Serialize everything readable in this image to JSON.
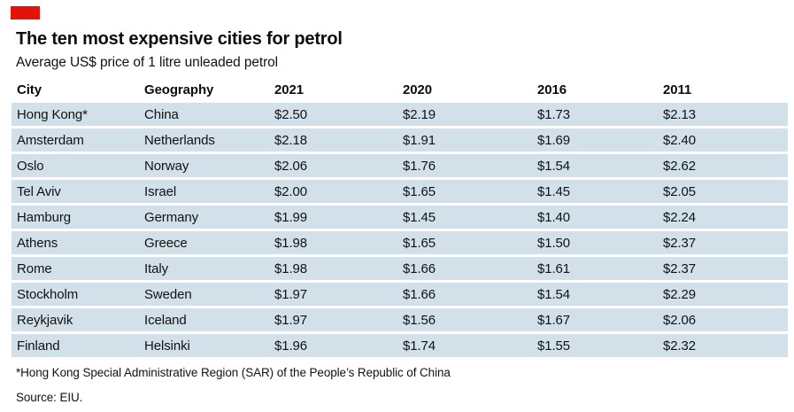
{
  "theme": {
    "logo_color": "#e3120b",
    "row_stripe_color": "#d2e0e9",
    "text_color": "#121212"
  },
  "header": {
    "title": "The ten most expensive cities for petrol",
    "subtitle": "Average US$ price of 1 litre unleaded petrol"
  },
  "table": {
    "columns": [
      "City",
      "Geography",
      "2021",
      "2020",
      "2016",
      "2011"
    ],
    "rows": [
      [
        "Hong Kong*",
        "China",
        "$2.50",
        "$2.19",
        "$1.73",
        "$2.13"
      ],
      [
        "Amsterdam",
        "Netherlands",
        "$2.18",
        "$1.91",
        "$1.69",
        "$2.40"
      ],
      [
        "Oslo",
        "Norway",
        "$2.06",
        "$1.76",
        "$1.54",
        "$2.62"
      ],
      [
        "Tel Aviv",
        "Israel",
        "$2.00",
        "$1.65",
        "$1.45",
        "$2.05"
      ],
      [
        "Hamburg",
        "Germany",
        "$1.99",
        "$1.45",
        "$1.40",
        "$2.24"
      ],
      [
        "Athens",
        "Greece",
        "$1.98",
        "$1.65",
        "$1.50",
        "$2.37"
      ],
      [
        "Rome",
        "Italy",
        "$1.98",
        "$1.66",
        "$1.61",
        "$2.37"
      ],
      [
        "Stockholm",
        "Sweden",
        "$1.97",
        "$1.66",
        "$1.54",
        "$2.29"
      ],
      [
        "Reykjavik",
        "Iceland",
        "$1.97",
        "$1.56",
        "$1.67",
        "$2.06"
      ],
      [
        "Finland",
        "Helsinki",
        "$1.96",
        "$1.74",
        "$1.55",
        "$2.32"
      ]
    ]
  },
  "footnote": "*Hong Kong Special Administrative Region (SAR) of the People’s Republic of China",
  "source": "Source: EIU.",
  "chart_data": {
    "type": "table",
    "title": "The ten most expensive cities for petrol",
    "subtitle": "Average US$ price of 1 litre unleaded petrol",
    "unit": "US$ per litre of unleaded petrol",
    "columns": [
      "City",
      "Geography",
      "2021",
      "2020",
      "2016",
      "2011"
    ],
    "rows": [
      {
        "city": "Hong Kong*",
        "geography": "China",
        "2021": 2.5,
        "2020": 2.19,
        "2016": 1.73,
        "2011": 2.13
      },
      {
        "city": "Amsterdam",
        "geography": "Netherlands",
        "2021": 2.18,
        "2020": 1.91,
        "2016": 1.69,
        "2011": 2.4
      },
      {
        "city": "Oslo",
        "geography": "Norway",
        "2021": 2.06,
        "2020": 1.76,
        "2016": 1.54,
        "2011": 2.62
      },
      {
        "city": "Tel Aviv",
        "geography": "Israel",
        "2021": 2.0,
        "2020": 1.65,
        "2016": 1.45,
        "2011": 2.05
      },
      {
        "city": "Hamburg",
        "geography": "Germany",
        "2021": 1.99,
        "2020": 1.45,
        "2016": 1.4,
        "2011": 2.24
      },
      {
        "city": "Athens",
        "geography": "Greece",
        "2021": 1.98,
        "2020": 1.65,
        "2016": 1.5,
        "2011": 2.37
      },
      {
        "city": "Rome",
        "geography": "Italy",
        "2021": 1.98,
        "2020": 1.66,
        "2016": 1.61,
        "2011": 2.37
      },
      {
        "city": "Stockholm",
        "geography": "Sweden",
        "2021": 1.97,
        "2020": 1.66,
        "2016": 1.54,
        "2011": 2.29
      },
      {
        "city": "Reykjavik",
        "geography": "Iceland",
        "2021": 1.97,
        "2020": 1.56,
        "2016": 1.67,
        "2011": 2.06
      },
      {
        "city": "Finland",
        "geography": "Helsinki",
        "2021": 1.96,
        "2020": 1.74,
        "2016": 1.55,
        "2011": 2.32
      }
    ],
    "footnote": "*Hong Kong Special Administrative Region (SAR) of the People’s Republic of China",
    "source": "Source: EIU."
  }
}
